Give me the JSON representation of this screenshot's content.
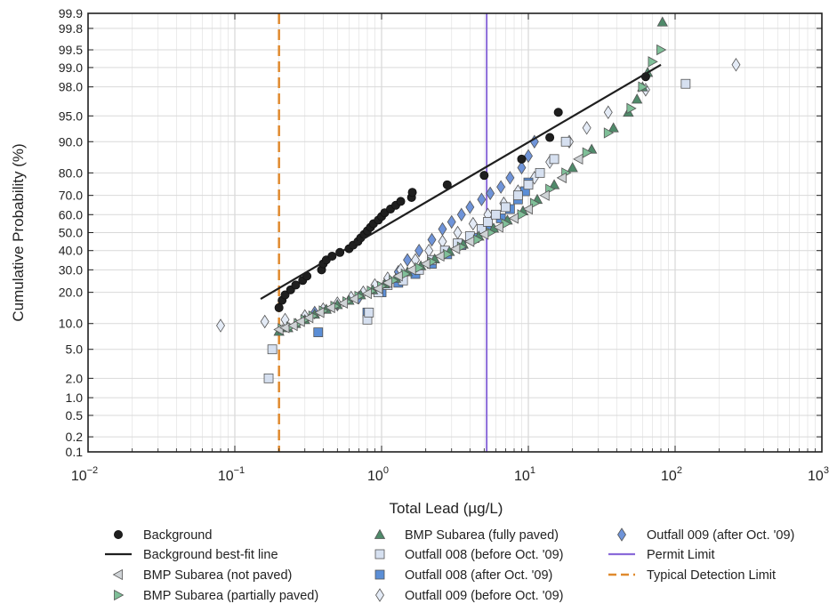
{
  "chart_data": {
    "type": "scatter",
    "title": "",
    "xlabel": "Total Lead (µg/L)",
    "ylabel": "Cumulative Probability (%)",
    "x_scale": "log",
    "y_scale": "probability",
    "xlim": [
      0.01,
      1000
    ],
    "ylim": [
      0.1,
      99.9
    ],
    "x_ticks": [
      {
        "value": 0.01,
        "base": "10",
        "exp": "−2"
      },
      {
        "value": 0.1,
        "base": "10",
        "exp": "−1"
      },
      {
        "value": 1,
        "base": "10",
        "exp": "0"
      },
      {
        "value": 10,
        "base": "10",
        "exp": "1"
      },
      {
        "value": 100,
        "base": "10",
        "exp": "2"
      },
      {
        "value": 1000,
        "base": "10",
        "exp": "3"
      }
    ],
    "y_ticks": [
      {
        "value": 0.1,
        "label": "0.1"
      },
      {
        "value": 0.2,
        "label": "0.2"
      },
      {
        "value": 0.5,
        "label": "0.5"
      },
      {
        "value": 1,
        "label": "1.0"
      },
      {
        "value": 2,
        "label": "2.0"
      },
      {
        "value": 5,
        "label": "5.0"
      },
      {
        "value": 10,
        "label": "10.0"
      },
      {
        "value": 20,
        "label": "20.0"
      },
      {
        "value": 30,
        "label": "30.0"
      },
      {
        "value": 40,
        "label": "40.0"
      },
      {
        "value": 50,
        "label": "50.0"
      },
      {
        "value": 60,
        "label": "60.0"
      },
      {
        "value": 70,
        "label": "70.0"
      },
      {
        "value": 80,
        "label": "80.0"
      },
      {
        "value": 90,
        "label": "90.0"
      },
      {
        "value": 95,
        "label": "95.0"
      },
      {
        "value": 98,
        "label": "98.0"
      },
      {
        "value": 99,
        "label": "99.0"
      },
      {
        "value": 99.5,
        "label": "99.5"
      },
      {
        "value": 99.8,
        "label": "99.8"
      },
      {
        "value": 99.9,
        "label": "99.9"
      }
    ],
    "grid": true,
    "legend_position": "bottom",
    "series": [
      {
        "name": "Background",
        "marker": "circle",
        "color": "#1f1f1f",
        "points": [
          [
            0.2,
            14.5
          ],
          [
            0.21,
            17
          ],
          [
            0.22,
            19
          ],
          [
            0.24,
            21
          ],
          [
            0.26,
            23
          ],
          [
            0.29,
            25
          ],
          [
            0.31,
            27
          ],
          [
            0.39,
            30
          ],
          [
            0.4,
            33
          ],
          [
            0.42,
            35
          ],
          [
            0.46,
            37
          ],
          [
            0.52,
            39
          ],
          [
            0.6,
            41
          ],
          [
            0.64,
            43
          ],
          [
            0.69,
            45
          ],
          [
            0.72,
            47
          ],
          [
            0.76,
            49
          ],
          [
            0.8,
            51
          ],
          [
            0.84,
            53
          ],
          [
            0.88,
            55
          ],
          [
            0.95,
            57
          ],
          [
            1.0,
            59
          ],
          [
            1.05,
            61
          ],
          [
            1.15,
            63
          ],
          [
            1.25,
            65
          ],
          [
            1.35,
            67
          ],
          [
            1.6,
            69
          ],
          [
            1.62,
            71.5
          ],
          [
            2.8,
            75
          ],
          [
            5.0,
            79
          ],
          [
            9.0,
            85
          ],
          [
            14,
            91
          ],
          [
            16,
            95.5
          ],
          [
            63,
            98.6
          ]
        ]
      },
      {
        "name": "Background best-fit line",
        "marker": "line",
        "color": "#1f1f1f",
        "line": [
          [
            0.15,
            17.5
          ],
          [
            80,
            99.1
          ]
        ]
      },
      {
        "name": "BMP Subarea (not paved)",
        "marker": "tri-left",
        "color": "#cfd3d6",
        "points": [
          [
            0.2,
            8.6
          ],
          [
            0.22,
            9
          ],
          [
            0.25,
            9.5
          ],
          [
            0.28,
            10.5
          ],
          [
            0.32,
            11.5
          ],
          [
            0.38,
            13
          ],
          [
            0.45,
            14.5
          ],
          [
            0.55,
            16
          ],
          [
            0.65,
            17.5
          ],
          [
            0.8,
            19.5
          ],
          [
            0.95,
            21.5
          ],
          [
            1.1,
            24
          ],
          [
            1.3,
            27
          ],
          [
            1.6,
            30
          ],
          [
            2.0,
            33
          ],
          [
            2.5,
            37
          ],
          [
            3.2,
            41
          ],
          [
            4.0,
            45
          ],
          [
            5.0,
            49
          ],
          [
            6.3,
            53
          ],
          [
            8.0,
            58
          ],
          [
            10,
            63
          ],
          [
            13,
            70
          ],
          [
            17,
            78
          ],
          [
            22,
            85
          ]
        ]
      },
      {
        "name": "BMP Subarea (partially paved)",
        "marker": "tri-right",
        "color": "#7fbf98",
        "points": [
          [
            0.21,
            8.8
          ],
          [
            0.24,
            9.2
          ],
          [
            0.27,
            10
          ],
          [
            0.3,
            11
          ],
          [
            0.34,
            12
          ],
          [
            0.4,
            13.5
          ],
          [
            0.48,
            15
          ],
          [
            0.58,
            16.5
          ],
          [
            0.7,
            18.5
          ],
          [
            0.85,
            20.5
          ],
          [
            1.0,
            22.5
          ],
          [
            1.2,
            25
          ],
          [
            1.45,
            28
          ],
          [
            1.8,
            31
          ],
          [
            2.2,
            34
          ],
          [
            2.8,
            38
          ],
          [
            3.5,
            42
          ],
          [
            4.5,
            46
          ],
          [
            5.5,
            50
          ],
          [
            7,
            55
          ],
          [
            9,
            60
          ],
          [
            11,
            66
          ],
          [
            14,
            73
          ],
          [
            18,
            80
          ],
          [
            25,
            87
          ],
          [
            35,
            92
          ],
          [
            50,
            96
          ],
          [
            60,
            98
          ],
          [
            70,
            99.2
          ],
          [
            80,
            99.5
          ]
        ]
      },
      {
        "name": "BMP Subarea (fully paved)",
        "marker": "tri-up",
        "color": "#4f8a6a",
        "points": [
          [
            0.2,
            8.2
          ],
          [
            0.23,
            9
          ],
          [
            0.26,
            10
          ],
          [
            0.3,
            11
          ],
          [
            0.35,
            12.5
          ],
          [
            0.42,
            14
          ],
          [
            0.5,
            15.5
          ],
          [
            0.6,
            17
          ],
          [
            0.72,
            19
          ],
          [
            0.87,
            21
          ],
          [
            1.05,
            23.5
          ],
          [
            1.25,
            26
          ],
          [
            1.5,
            29
          ],
          [
            1.85,
            32
          ],
          [
            2.3,
            35.5
          ],
          [
            2.9,
            39.5
          ],
          [
            3.6,
            43.5
          ],
          [
            4.6,
            48
          ],
          [
            5.8,
            52.5
          ],
          [
            7.2,
            57
          ],
          [
            9.2,
            62
          ],
          [
            11.5,
            68
          ],
          [
            15,
            75
          ],
          [
            20,
            82
          ],
          [
            27,
            88
          ],
          [
            38,
            93
          ],
          [
            48,
            95.5
          ],
          [
            55,
            97
          ],
          [
            60,
            98
          ],
          [
            65,
            98.8
          ],
          [
            82,
            99.85
          ]
        ]
      },
      {
        "name": "Outfall 008 (before Oct. '09)",
        "marker": "square",
        "color": "#d6e0f0",
        "points": [
          [
            0.17,
            2.0
          ],
          [
            0.18,
            5.0
          ],
          [
            0.8,
            11
          ],
          [
            0.82,
            13
          ],
          [
            0.95,
            20
          ],
          [
            1.1,
            23
          ],
          [
            1.4,
            25
          ],
          [
            1.8,
            30
          ],
          [
            2.2,
            35
          ],
          [
            2.7,
            40
          ],
          [
            3.3,
            44
          ],
          [
            4.0,
            48
          ],
          [
            4.8,
            52
          ],
          [
            5.3,
            56
          ],
          [
            6,
            60
          ],
          [
            7,
            64
          ],
          [
            8.5,
            70
          ],
          [
            10,
            75
          ],
          [
            12,
            80
          ],
          [
            15,
            85
          ],
          [
            18,
            90
          ],
          [
            118,
            98.2
          ]
        ]
      },
      {
        "name": "Outfall 008 (after Oct. '09)",
        "marker": "square",
        "color": "#5b8ed6",
        "points": [
          [
            0.37,
            8
          ],
          [
            0.8,
            13
          ],
          [
            1.0,
            20
          ],
          [
            1.3,
            24
          ],
          [
            1.7,
            28
          ],
          [
            2.2,
            33
          ],
          [
            2.8,
            38
          ],
          [
            3.5,
            43
          ],
          [
            4.3,
            47
          ],
          [
            5.2,
            52
          ],
          [
            6.5,
            58
          ],
          [
            7.5,
            63
          ],
          [
            8.5,
            68
          ],
          [
            9.5,
            72
          ],
          [
            10,
            76
          ]
        ]
      },
      {
        "name": "Outfall 009 (before Oct. '09)",
        "marker": "diamond",
        "color": "#e4ebf6",
        "points": [
          [
            0.08,
            9.5
          ],
          [
            0.16,
            10.5
          ],
          [
            0.22,
            11
          ],
          [
            0.3,
            12
          ],
          [
            0.4,
            14
          ],
          [
            0.5,
            16
          ],
          [
            0.62,
            18
          ],
          [
            0.75,
            20
          ],
          [
            0.9,
            23
          ],
          [
            1.1,
            26
          ],
          [
            1.35,
            30
          ],
          [
            1.7,
            35
          ],
          [
            2.1,
            40
          ],
          [
            2.6,
            45
          ],
          [
            3.3,
            50
          ],
          [
            4.2,
            55
          ],
          [
            5.3,
            60
          ],
          [
            6.8,
            66
          ],
          [
            8.5,
            72
          ],
          [
            11,
            78
          ],
          [
            14,
            84
          ],
          [
            19,
            90
          ],
          [
            25,
            93
          ],
          [
            35,
            95.5
          ],
          [
            63,
            97.8
          ],
          [
            260,
            99.1
          ]
        ]
      },
      {
        "name": "Outfall 009 (after Oct. '09)",
        "marker": "diamond",
        "color": "#6f94d9",
        "points": [
          [
            0.35,
            13
          ],
          [
            0.5,
            15.5
          ],
          [
            0.7,
            18
          ],
          [
            0.9,
            21
          ],
          [
            1.1,
            25
          ],
          [
            1.3,
            29
          ],
          [
            1.5,
            35
          ],
          [
            1.8,
            40
          ],
          [
            2.2,
            46
          ],
          [
            2.6,
            52
          ],
          [
            3.0,
            56
          ],
          [
            3.5,
            60
          ],
          [
            4.0,
            64
          ],
          [
            4.8,
            68
          ],
          [
            5.5,
            71
          ],
          [
            6.5,
            74
          ],
          [
            7.5,
            78
          ],
          [
            9,
            82
          ],
          [
            10,
            86
          ],
          [
            11,
            90
          ]
        ]
      },
      {
        "name": "Permit Limit",
        "marker": "vline",
        "color": "#8a6ad9",
        "x": 5.2
      },
      {
        "name": "Typical Detection Limit",
        "marker": "vdash",
        "color": "#e08a2e",
        "x": 0.2
      }
    ]
  }
}
